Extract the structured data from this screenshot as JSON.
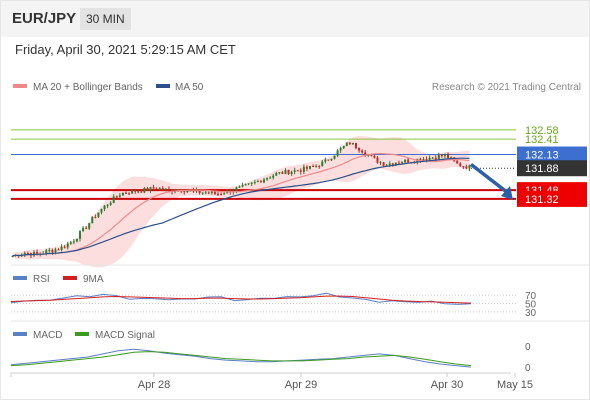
{
  "header": {
    "symbol": "EUR/JPY",
    "interval": "30 MIN"
  },
  "datetime": "Friday, April 30, 2021 5:29:15 AM CET",
  "legend": {
    "items": [
      {
        "label": "MA 20 + Bollinger Bands",
        "color": "#f08a8a"
      },
      {
        "label": "MA 50",
        "color": "#2b4f8a"
      }
    ],
    "attribution": "Research © 2021 Trading Central"
  },
  "chart_data": [
    {
      "type": "candlestick",
      "ylim": [
        130.15,
        133.18
      ],
      "x_ticks": [
        "Apr 28",
        "Apr 29",
        "Apr 30",
        "May 15"
      ],
      "levels": [
        {
          "value": 132.58,
          "label": "132.58",
          "style": "green-line"
        },
        {
          "value": 132.41,
          "label": "132.41",
          "style": "green-line"
        },
        {
          "value": 132.13,
          "label": "132.13",
          "style": "blue-line"
        },
        {
          "value": 131.88,
          "label": "131.88",
          "style": "current-price"
        },
        {
          "value": 131.48,
          "label": "131.48",
          "style": "red-line"
        },
        {
          "value": 131.32,
          "label": "131.32",
          "style": "red-line"
        }
      ],
      "close_path": [
        130.28,
        130.34,
        130.31,
        130.37,
        130.42,
        130.55,
        130.78,
        131.05,
        131.25,
        131.42,
        131.46,
        131.48,
        131.52,
        131.47,
        131.5,
        131.45,
        131.44,
        131.41,
        131.47,
        131.52,
        131.6,
        131.7,
        131.78,
        131.82,
        131.85,
        131.9,
        132.0,
        132.18,
        132.35,
        132.22,
        132.05,
        131.95,
        132.0,
        132.02,
        132.05,
        132.08,
        132.12,
        131.95,
        131.9
      ],
      "colors": {
        "up": "#2e7d32",
        "down": "#c62828",
        "ma50": "#2b4f8a",
        "ma20": "#f08a8a",
        "bands": "#fbd3d3"
      },
      "forecast_arrow": {
        "from": 131.95,
        "to": 131.3,
        "color": "#2b5fa8"
      }
    },
    {
      "type": "line",
      "title": "RSI",
      "series": [
        {
          "name": "RSI",
          "color": "#5b7fc4",
          "values": [
            52,
            58,
            55,
            60,
            64,
            66,
            69,
            71,
            68,
            63,
            60,
            62,
            61,
            58,
            63,
            66,
            64,
            60,
            58,
            62,
            65,
            64,
            67,
            70,
            72,
            68,
            63,
            58,
            56,
            55,
            54,
            55,
            53,
            51,
            49,
            47
          ]
        },
        {
          "name": "9MA",
          "color": "#d21f1f",
          "values": [
            55,
            56,
            57,
            58,
            60,
            62,
            64,
            66,
            67,
            66,
            65,
            64,
            63,
            62,
            62,
            63,
            63,
            62,
            61,
            61,
            62,
            63,
            64,
            66,
            68,
            68,
            67,
            64,
            61,
            58,
            56,
            55,
            54,
            53,
            52,
            51
          ]
        }
      ],
      "ylim": [
        20,
        85
      ],
      "ref_levels": [
        70,
        50,
        30
      ]
    },
    {
      "type": "line",
      "title": "MACD",
      "series": [
        {
          "name": "MACD",
          "color": "#5b7fc4",
          "values": [
            0.02,
            0.04,
            0.06,
            0.08,
            0.1,
            0.12,
            0.16,
            0.2,
            0.22,
            0.2,
            0.17,
            0.15,
            0.13,
            0.1,
            0.08,
            0.07,
            0.06,
            0.06,
            0.07,
            0.08,
            0.09,
            0.1,
            0.12,
            0.14,
            0.16,
            0.14,
            0.1,
            0.06,
            0.03,
            0.01,
            -0.01
          ]
        },
        {
          "name": "MACD Signal",
          "color": "#3c9a1e",
          "values": [
            0.01,
            0.02,
            0.04,
            0.06,
            0.08,
            0.1,
            0.12,
            0.15,
            0.18,
            0.19,
            0.18,
            0.16,
            0.14,
            0.12,
            0.1,
            0.09,
            0.08,
            0.07,
            0.07,
            0.07,
            0.08,
            0.09,
            0.1,
            0.12,
            0.13,
            0.14,
            0.12,
            0.09,
            0.06,
            0.03,
            0.01
          ]
        }
      ],
      "ylim": [
        -0.06,
        0.3
      ],
      "y_ticks": [
        "0",
        "0"
      ]
    }
  ]
}
